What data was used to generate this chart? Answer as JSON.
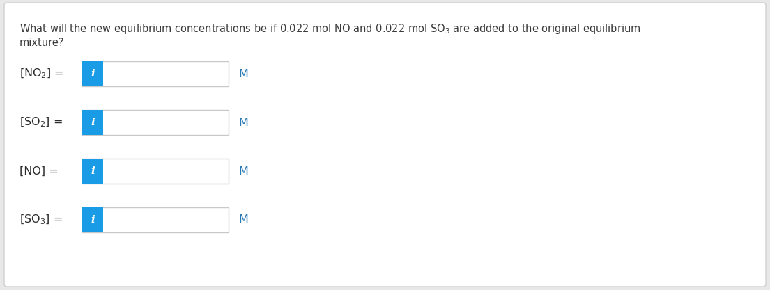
{
  "background_color": "#e8e8e8",
  "panel_color": "#ffffff",
  "panel_border": "#d0d0d0",
  "blue_color": "#1a9be6",
  "input_border": "#c8c8c8",
  "input_fill": "#ffffff",
  "text_color": "#3a3a3a",
  "label_color": "#2a2a2a",
  "M_color": "#2a7ab5",
  "title1": "What will the new equilibrium concentrations be if 0.022 mol NO and 0.022 mol SO$_3$ are added to the original equilibrium",
  "title2": "mixture?",
  "rows": [
    {
      "label": "[NO$_2$] ="
    },
    {
      "label": "[SO$_2$] ="
    },
    {
      "label": "[NO] ="
    },
    {
      "label": "[SO$_3$] ="
    }
  ],
  "figsize": [
    11.05,
    4.17
  ],
  "dpi": 100
}
